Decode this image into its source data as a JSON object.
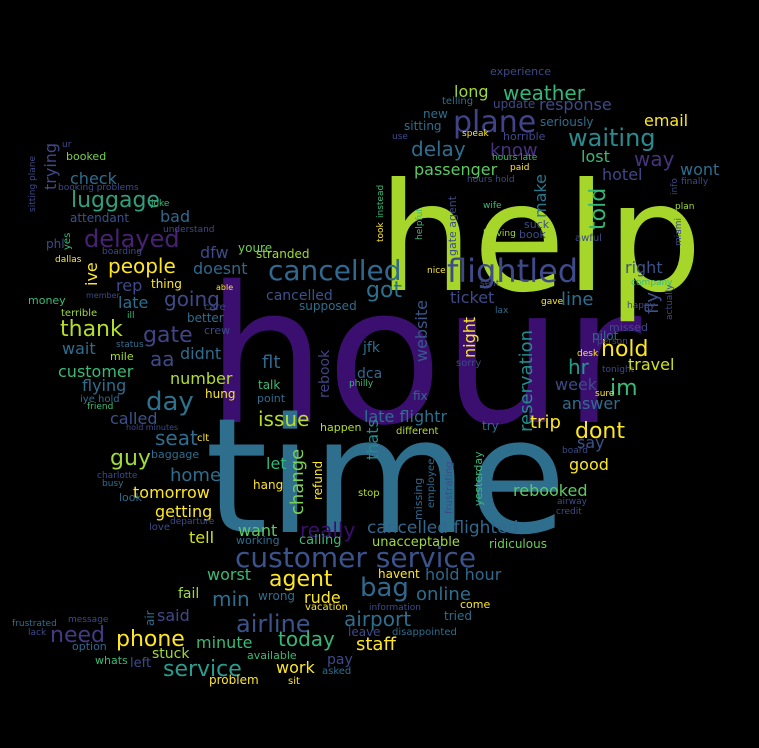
{
  "background": "#000000",
  "words": [
    {
      "text": "hour",
      "color": "#3b0f70"
    },
    {
      "text": "time",
      "color": "#2f6f8e"
    },
    {
      "text": "help",
      "color": "#a6d62a"
    },
    {
      "text": "flightled",
      "color": "#3e4a89"
    },
    {
      "text": "cancelled",
      "color": "#31688e"
    },
    {
      "text": "plane",
      "color": "#404387"
    },
    {
      "text": "customer service",
      "color": "#3b528b"
    },
    {
      "text": "delayed",
      "color": "#482173"
    },
    {
      "text": "luggage",
      "color": "#2f9f7f"
    },
    {
      "text": "waiting",
      "color": "#2c8a8e"
    },
    {
      "text": "weather",
      "color": "#35b779"
    },
    {
      "text": "airline",
      "color": "#3b528b"
    },
    {
      "text": "bag",
      "color": "#31688e"
    },
    {
      "text": "phone",
      "color": "#fde725"
    },
    {
      "text": "service",
      "color": "#2a9d8f"
    },
    {
      "text": "need",
      "color": "#443a83"
    },
    {
      "text": "day",
      "color": "#2c728e"
    },
    {
      "text": "gate",
      "color": "#414487"
    },
    {
      "text": "thank",
      "color": "#b5de2b"
    },
    {
      "text": "people",
      "color": "#fde725"
    },
    {
      "text": "agent",
      "color": "#fde725"
    },
    {
      "text": "got",
      "color": "#2c728e"
    },
    {
      "text": "hold",
      "color": "#fde725"
    },
    {
      "text": "im",
      "color": "#3aba76"
    },
    {
      "text": "told",
      "color": "#35b779"
    },
    {
      "text": "help",
      "color": "#a6d62a"
    },
    {
      "text": "delay",
      "color": "#2e6e8e"
    },
    {
      "text": "know",
      "color": "#46327e"
    },
    {
      "text": "email",
      "color": "#fde725"
    },
    {
      "text": "response",
      "color": "#3e4a89"
    },
    {
      "text": "long",
      "color": "#a0da39"
    },
    {
      "text": "passenger",
      "color": "#5ec962"
    },
    {
      "text": "way",
      "color": "#46337e"
    },
    {
      "text": "wont",
      "color": "#2e6e8e"
    },
    {
      "text": "hotel",
      "color": "#3f4889"
    },
    {
      "text": "lost",
      "color": "#3aba76"
    },
    {
      "text": "make",
      "color": "#2a788e"
    },
    {
      "text": "right",
      "color": "#3b528b"
    },
    {
      "text": "fly",
      "color": "#3b528b"
    },
    {
      "text": "travel",
      "color": "#d2e21b"
    },
    {
      "text": "hr",
      "color": "#1f9e89"
    },
    {
      "text": "line",
      "color": "#2e6e8e"
    },
    {
      "text": "ticket",
      "color": "#3e4a89"
    },
    {
      "text": "night",
      "color": "#fde725"
    },
    {
      "text": "reservation",
      "color": "#228c8d"
    },
    {
      "text": "website",
      "color": "#38598c"
    },
    {
      "text": "issue",
      "color": "#b5de2b"
    },
    {
      "text": "late flightr",
      "color": "#2e6e8e"
    },
    {
      "text": "trip",
      "color": "#fde725"
    },
    {
      "text": "dont",
      "color": "#fde725"
    },
    {
      "text": "say",
      "color": "#3b528b"
    },
    {
      "text": "week",
      "color": "#3e4a89"
    },
    {
      "text": "answer",
      "color": "#2e6e8e"
    },
    {
      "text": "good",
      "color": "#fde725"
    },
    {
      "text": "rebooked",
      "color": "#5ec962"
    },
    {
      "text": "cancelled flighted",
      "color": "#31688e"
    },
    {
      "text": "really",
      "color": "#3b0f70"
    },
    {
      "text": "change",
      "color": "#7ad151"
    },
    {
      "text": "let",
      "color": "#35b779"
    },
    {
      "text": "thats",
      "color": "#228c8d"
    },
    {
      "text": "rebook",
      "color": "#414487"
    },
    {
      "text": "refund",
      "color": "#fde725"
    },
    {
      "text": "flt",
      "color": "#31688e"
    },
    {
      "text": "jfk",
      "color": "#2e6e8e"
    },
    {
      "text": "dca",
      "color": "#31688e"
    },
    {
      "text": "want",
      "color": "#5ec962"
    },
    {
      "text": "tell",
      "color": "#d2e21b"
    },
    {
      "text": "getting",
      "color": "#fde725"
    },
    {
      "text": "home",
      "color": "#2e6e8e"
    },
    {
      "text": "tomorrow",
      "color": "#fde725"
    },
    {
      "text": "guy",
      "color": "#a0da39"
    },
    {
      "text": "seat",
      "color": "#2e6e8e"
    },
    {
      "text": "called",
      "color": "#3b528b"
    },
    {
      "text": "flying",
      "color": "#2e6e8e"
    },
    {
      "text": "customer",
      "color": "#3aba76"
    },
    {
      "text": "number",
      "color": "#b5de2b"
    },
    {
      "text": "didnt",
      "color": "#2e6e8e"
    },
    {
      "text": "aa",
      "color": "#3e4a89"
    },
    {
      "text": "wait",
      "color": "#2e6e8e"
    },
    {
      "text": "going",
      "color": "#3e4a89"
    },
    {
      "text": "late",
      "color": "#2e6e8e"
    },
    {
      "text": "rep",
      "color": "#3e4a89"
    },
    {
      "text": "bad",
      "color": "#31688e"
    },
    {
      "text": "ive",
      "color": "#fde725"
    },
    {
      "text": "dfw",
      "color": "#3e4a89"
    },
    {
      "text": "doesnt",
      "color": "#31688e"
    },
    {
      "text": "youre",
      "color": "#6ece58"
    },
    {
      "text": "stranded",
      "color": "#a0da39"
    },
    {
      "text": "cancelled",
      "color": "#3b528b"
    },
    {
      "text": "check",
      "color": "#2e6e8e"
    },
    {
      "text": "trying",
      "color": "#3e4a89"
    },
    {
      "text": "attendant",
      "color": "#3b528b"
    },
    {
      "text": "booked",
      "color": "#7ad151"
    },
    {
      "text": "worst",
      "color": "#3aba76"
    },
    {
      "text": "min",
      "color": "#2e6e8e"
    },
    {
      "text": "said",
      "color": "#3e4a89"
    },
    {
      "text": "fail",
      "color": "#a0da39"
    },
    {
      "text": "stuck",
      "color": "#a0da39"
    },
    {
      "text": "minute",
      "color": "#3aba76"
    },
    {
      "text": "today",
      "color": "#35b779"
    },
    {
      "text": "work",
      "color": "#fde725"
    },
    {
      "text": "pay",
      "color": "#3e4a89"
    },
    {
      "text": "staff",
      "color": "#fde725"
    },
    {
      "text": "airport",
      "color": "#2e6e8e"
    },
    {
      "text": "online",
      "color": "#2e6e8e"
    },
    {
      "text": "rude",
      "color": "#fde725"
    },
    {
      "text": "hold hour",
      "color": "#31688e"
    },
    {
      "text": "unacceptable",
      "color": "#a0da39"
    },
    {
      "text": "ridiculous",
      "color": "#6ece58"
    },
    {
      "text": "havent",
      "color": "#fde725"
    },
    {
      "text": "tried",
      "color": "#2e6e8e"
    },
    {
      "text": "leave",
      "color": "#3e4a89"
    },
    {
      "text": "disappointed",
      "color": "#2e6e8e"
    },
    {
      "text": "experience",
      "color": "#3e4a89"
    },
    {
      "text": "update",
      "color": "#3e4a89"
    },
    {
      "text": "seriously",
      "color": "#2e6e8e"
    },
    {
      "text": "sitting",
      "color": "#2e6e8e"
    },
    {
      "text": "new",
      "color": "#2e6e8e"
    },
    {
      "text": "horrible",
      "color": "#3e4a89"
    },
    {
      "text": "telling",
      "color": "#2e6e8e"
    },
    {
      "text": "money",
      "color": "#3aba76"
    },
    {
      "text": "terrible",
      "color": "#a0da39"
    },
    {
      "text": "better",
      "color": "#2e6e8e"
    },
    {
      "text": "crew",
      "color": "#3e4a89"
    },
    {
      "text": "supposed",
      "color": "#2e6e8e"
    },
    {
      "text": "thing",
      "color": "#fde725"
    },
    {
      "text": "mile",
      "color": "#a0da39"
    },
    {
      "text": "status",
      "color": "#2e6e8e"
    },
    {
      "text": "hung",
      "color": "#fde725"
    },
    {
      "text": "talk",
      "color": "#3aba76"
    },
    {
      "text": "point",
      "color": "#2e6e8e"
    },
    {
      "text": "happen",
      "color": "#b5de2b"
    },
    {
      "text": "fix",
      "color": "#31688e"
    },
    {
      "text": "try",
      "color": "#2e6e8e"
    },
    {
      "text": "pilot",
      "color": "#2e6e8e"
    },
    {
      "text": "missed",
      "color": "#3e4a89"
    },
    {
      "text": "baggage",
      "color": "#2e6e8e"
    },
    {
      "text": "hang",
      "color": "#fde725"
    },
    {
      "text": "clt",
      "color": "#fde725"
    },
    {
      "text": "look",
      "color": "#2e6e8e"
    },
    {
      "text": "busy",
      "color": "#2e6e8e"
    },
    {
      "text": "option",
      "color": "#31688e"
    },
    {
      "text": "whats",
      "color": "#3aba76"
    },
    {
      "text": "left",
      "color": "#3e4a89"
    },
    {
      "text": "available",
      "color": "#3aba76"
    },
    {
      "text": "problem",
      "color": "#fde725"
    },
    {
      "text": "sit",
      "color": "#fde725"
    },
    {
      "text": "asked",
      "color": "#2e6e8e"
    },
    {
      "text": "calling",
      "color": "#3aba76"
    },
    {
      "text": "working",
      "color": "#2e6e8e"
    },
    {
      "text": "wrong",
      "color": "#2e6e8e"
    },
    {
      "text": "vacation",
      "color": "#fde725"
    },
    {
      "text": "come",
      "color": "#fde725"
    },
    {
      "text": "information",
      "color": "#3e4a89"
    },
    {
      "text": "frustrated",
      "color": "#2e6e8e"
    },
    {
      "text": "message",
      "color": "#3e4a89"
    },
    {
      "text": "lack",
      "color": "#3e4a89"
    },
    {
      "text": "air",
      "color": "#2e6e8e"
    },
    {
      "text": "love",
      "color": "#3e4a89"
    },
    {
      "text": "departure",
      "color": "#3e4a89"
    },
    {
      "text": "different",
      "color": "#b5de2b"
    },
    {
      "text": "stop",
      "color": "#b5de2b"
    },
    {
      "text": "employee",
      "color": "#31688e"
    },
    {
      "text": "missing",
      "color": "#31688e"
    },
    {
      "text": "frustrating",
      "color": "#3e4a89"
    },
    {
      "text": "yesterday",
      "color": "#3aba76"
    },
    {
      "text": "airway",
      "color": "#3e4a89"
    },
    {
      "text": "credit",
      "color": "#3e4a89"
    },
    {
      "text": "board",
      "color": "#3e4a89"
    },
    {
      "text": "sure",
      "color": "#fde725"
    },
    {
      "text": "happy",
      "color": "#3e4a89"
    },
    {
      "text": "company",
      "color": "#3aba76"
    },
    {
      "text": "gave",
      "color": "#fde725"
    },
    {
      "text": "sent",
      "color": "#3e4a89"
    },
    {
      "text": "lax",
      "color": "#2e6e8e"
    },
    {
      "text": "nice",
      "color": "#fde725"
    },
    {
      "text": "book",
      "color": "#3e4a89"
    },
    {
      "text": "awful",
      "color": "#3e4a89"
    },
    {
      "text": "leaving",
      "color": "#a0da39"
    },
    {
      "text": "wife",
      "color": "#3aba76"
    },
    {
      "text": "gate agent",
      "color": "#3e4a89"
    },
    {
      "text": "helpful",
      "color": "#3aba76"
    },
    {
      "text": "took",
      "color": "#fde725"
    },
    {
      "text": "instead",
      "color": "#3aba76"
    },
    {
      "text": "suck",
      "color": "#3e4a89"
    },
    {
      "text": "paid",
      "color": "#fde725"
    },
    {
      "text": "hours late",
      "color": "#3aba76"
    },
    {
      "text": "hours hold",
      "color": "#3e4a89"
    },
    {
      "text": "speak",
      "color": "#fde725"
    },
    {
      "text": "use",
      "color": "#3e4a89"
    },
    {
      "text": "info",
      "color": "#3e4a89"
    },
    {
      "text": "finally",
      "color": "#3e4a89"
    },
    {
      "text": "plan",
      "color": "#a0da39"
    },
    {
      "text": "miami",
      "color": "#3e4a89"
    },
    {
      "text": "actually",
      "color": "#3e4a89"
    },
    {
      "text": "sitting plane",
      "color": "#3e4a89"
    },
    {
      "text": "booking problems",
      "color": "#3e4a89"
    },
    {
      "text": "joke",
      "color": "#3aba76"
    },
    {
      "text": "understand",
      "color": "#3e4a89"
    },
    {
      "text": "phl",
      "color": "#3e4a89"
    },
    {
      "text": "yes",
      "color": "#3aba76"
    },
    {
      "text": "dallas",
      "color": "#fde725"
    },
    {
      "text": "member",
      "color": "#3e4a89"
    },
    {
      "text": "able",
      "color": "#fde725"
    },
    {
      "text": "ill",
      "color": "#3aba76"
    },
    {
      "text": "care",
      "color": "#3e4a89"
    },
    {
      "text": "friend",
      "color": "#3aba76"
    },
    {
      "text": "iye hold",
      "color": "#2e6e8e"
    },
    {
      "text": "hold minutes",
      "color": "#3e4a89"
    },
    {
      "text": "charlotte",
      "color": "#3e4a89"
    },
    {
      "text": "philly",
      "color": "#3aba76"
    },
    {
      "text": "sorry",
      "color": "#3e4a89"
    },
    {
      "text": "tonight",
      "color": "#3e4a89"
    },
    {
      "text": "person",
      "color": "#3e4a89"
    },
    {
      "text": "desk",
      "color": "#fde725"
    },
    {
      "text": "ur",
      "color": "#3e4a89"
    },
    {
      "text": "boarding",
      "color": "#3e4a89"
    }
  ]
}
